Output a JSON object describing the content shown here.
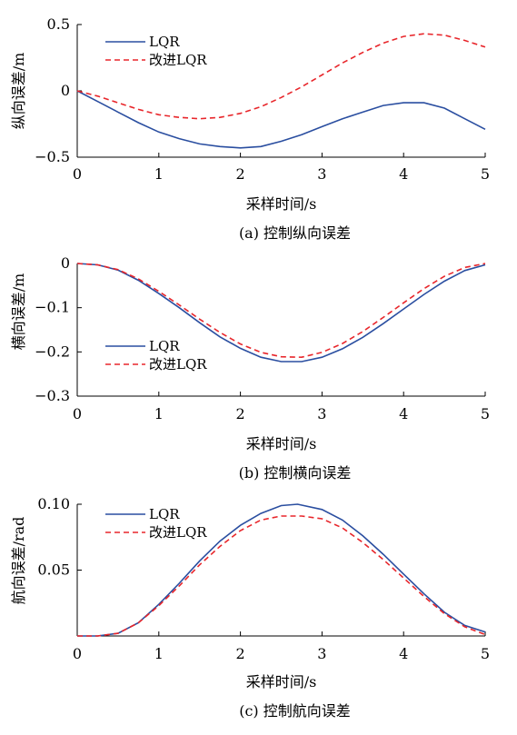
{
  "chart_data": [
    {
      "type": "line",
      "caption": "(a)  控制纵向误差",
      "xlabel": "采样时间/s",
      "ylabel": "纵向误差/m",
      "xlim": [
        0,
        5
      ],
      "ylim": [
        -0.5,
        0.5
      ],
      "xticks": [
        "0",
        "1",
        "2",
        "3",
        "4",
        "5"
      ],
      "yticks": [
        "−0.5",
        "0",
        "0.5"
      ],
      "legend_position": "top-left",
      "series": [
        {
          "name": "LQR",
          "color": "#2a4ea0",
          "dash": "solid",
          "x": [
            0,
            0.25,
            0.5,
            0.75,
            1.0,
            1.25,
            1.5,
            1.75,
            2.0,
            2.25,
            2.5,
            2.75,
            3.0,
            3.25,
            3.5,
            3.75,
            4.0,
            4.25,
            4.5,
            4.75,
            5.0
          ],
          "y": [
            0.0,
            -0.08,
            -0.16,
            -0.24,
            -0.31,
            -0.36,
            -0.4,
            -0.42,
            -0.43,
            -0.42,
            -0.38,
            -0.33,
            -0.27,
            -0.21,
            -0.16,
            -0.11,
            -0.09,
            -0.09,
            -0.13,
            -0.21,
            -0.29
          ]
        },
        {
          "name": "改进LQR",
          "color": "#e8262b",
          "dash": "dashed",
          "x": [
            0,
            0.25,
            0.5,
            0.75,
            1.0,
            1.25,
            1.5,
            1.75,
            2.0,
            2.25,
            2.5,
            2.75,
            3.0,
            3.25,
            3.5,
            3.75,
            4.0,
            4.25,
            4.5,
            4.75,
            5.0
          ],
          "y": [
            0.0,
            -0.04,
            -0.09,
            -0.14,
            -0.18,
            -0.2,
            -0.21,
            -0.2,
            -0.17,
            -0.12,
            -0.05,
            0.03,
            0.12,
            0.21,
            0.29,
            0.36,
            0.41,
            0.43,
            0.42,
            0.38,
            0.33
          ]
        }
      ]
    },
    {
      "type": "line",
      "caption": "(b)  控制横向误差",
      "xlabel": "采样时间/s",
      "ylabel": "横向误差/m",
      "xlim": [
        0,
        5
      ],
      "ylim": [
        -0.3,
        0
      ],
      "xticks": [
        "0",
        "1",
        "2",
        "3",
        "4",
        "5"
      ],
      "yticks": [
        "−0.3",
        "−0.2",
        "−0.1",
        "0"
      ],
      "legend_position": "bottom-left",
      "series": [
        {
          "name": "LQR",
          "color": "#2a4ea0",
          "dash": "solid",
          "x": [
            0,
            0.25,
            0.5,
            0.75,
            1.0,
            1.25,
            1.5,
            1.75,
            2.0,
            2.25,
            2.5,
            2.75,
            3.0,
            3.25,
            3.5,
            3.75,
            4.0,
            4.25,
            4.5,
            4.75,
            5.0
          ],
          "y": [
            0.0,
            -0.003,
            -0.015,
            -0.038,
            -0.068,
            -0.1,
            -0.134,
            -0.166,
            -0.192,
            -0.212,
            -0.222,
            -0.222,
            -0.212,
            -0.193,
            -0.167,
            -0.136,
            -0.103,
            -0.07,
            -0.04,
            -0.016,
            -0.003
          ]
        },
        {
          "name": "改进LQR",
          "color": "#e8262b",
          "dash": "dashed",
          "x": [
            0,
            0.25,
            0.5,
            0.75,
            1.0,
            1.25,
            1.5,
            1.75,
            2.0,
            2.25,
            2.5,
            2.75,
            3.0,
            3.25,
            3.5,
            3.75,
            4.0,
            4.25,
            4.5,
            4.75,
            5.0
          ],
          "y": [
            0.0,
            -0.003,
            -0.014,
            -0.035,
            -0.063,
            -0.094,
            -0.126,
            -0.156,
            -0.182,
            -0.201,
            -0.211,
            -0.212,
            -0.201,
            -0.181,
            -0.154,
            -0.122,
            -0.089,
            -0.057,
            -0.029,
            -0.009,
            0.0
          ]
        }
      ]
    },
    {
      "type": "line",
      "caption": "(c)  控制航向误差",
      "xlabel": "采样时间/s",
      "ylabel": "航向误差/rad",
      "xlim": [
        0,
        5
      ],
      "ylim": [
        0,
        0.1
      ],
      "xticks": [
        "0",
        "1",
        "2",
        "3",
        "4",
        "5"
      ],
      "yticks": [
        "",
        "0.05",
        "0.10"
      ],
      "legend_position": "top-left",
      "series": [
        {
          "name": "LQR",
          "color": "#2a4ea0",
          "dash": "solid",
          "x": [
            0,
            0.25,
            0.5,
            0.75,
            1.0,
            1.25,
            1.5,
            1.75,
            2.0,
            2.25,
            2.5,
            2.7,
            3.0,
            3.25,
            3.5,
            3.75,
            4.0,
            4.25,
            4.5,
            4.75,
            5.0
          ],
          "y": [
            0.0,
            0.0,
            0.002,
            0.01,
            0.024,
            0.04,
            0.057,
            0.072,
            0.084,
            0.093,
            0.099,
            0.1,
            0.096,
            0.088,
            0.076,
            0.062,
            0.047,
            0.032,
            0.018,
            0.008,
            0.003
          ]
        },
        {
          "name": "改进LQR",
          "color": "#e8262b",
          "dash": "dashed",
          "x": [
            0,
            0.25,
            0.5,
            0.75,
            1.0,
            1.25,
            1.5,
            1.75,
            2.0,
            2.25,
            2.5,
            2.75,
            3.0,
            3.25,
            3.5,
            3.75,
            4.0,
            4.25,
            4.5,
            4.75,
            5.0
          ],
          "y": [
            0.0,
            0.0,
            0.002,
            0.01,
            0.023,
            0.038,
            0.054,
            0.068,
            0.08,
            0.088,
            0.091,
            0.091,
            0.089,
            0.082,
            0.071,
            0.058,
            0.044,
            0.03,
            0.017,
            0.007,
            0.001
          ]
        }
      ]
    }
  ]
}
